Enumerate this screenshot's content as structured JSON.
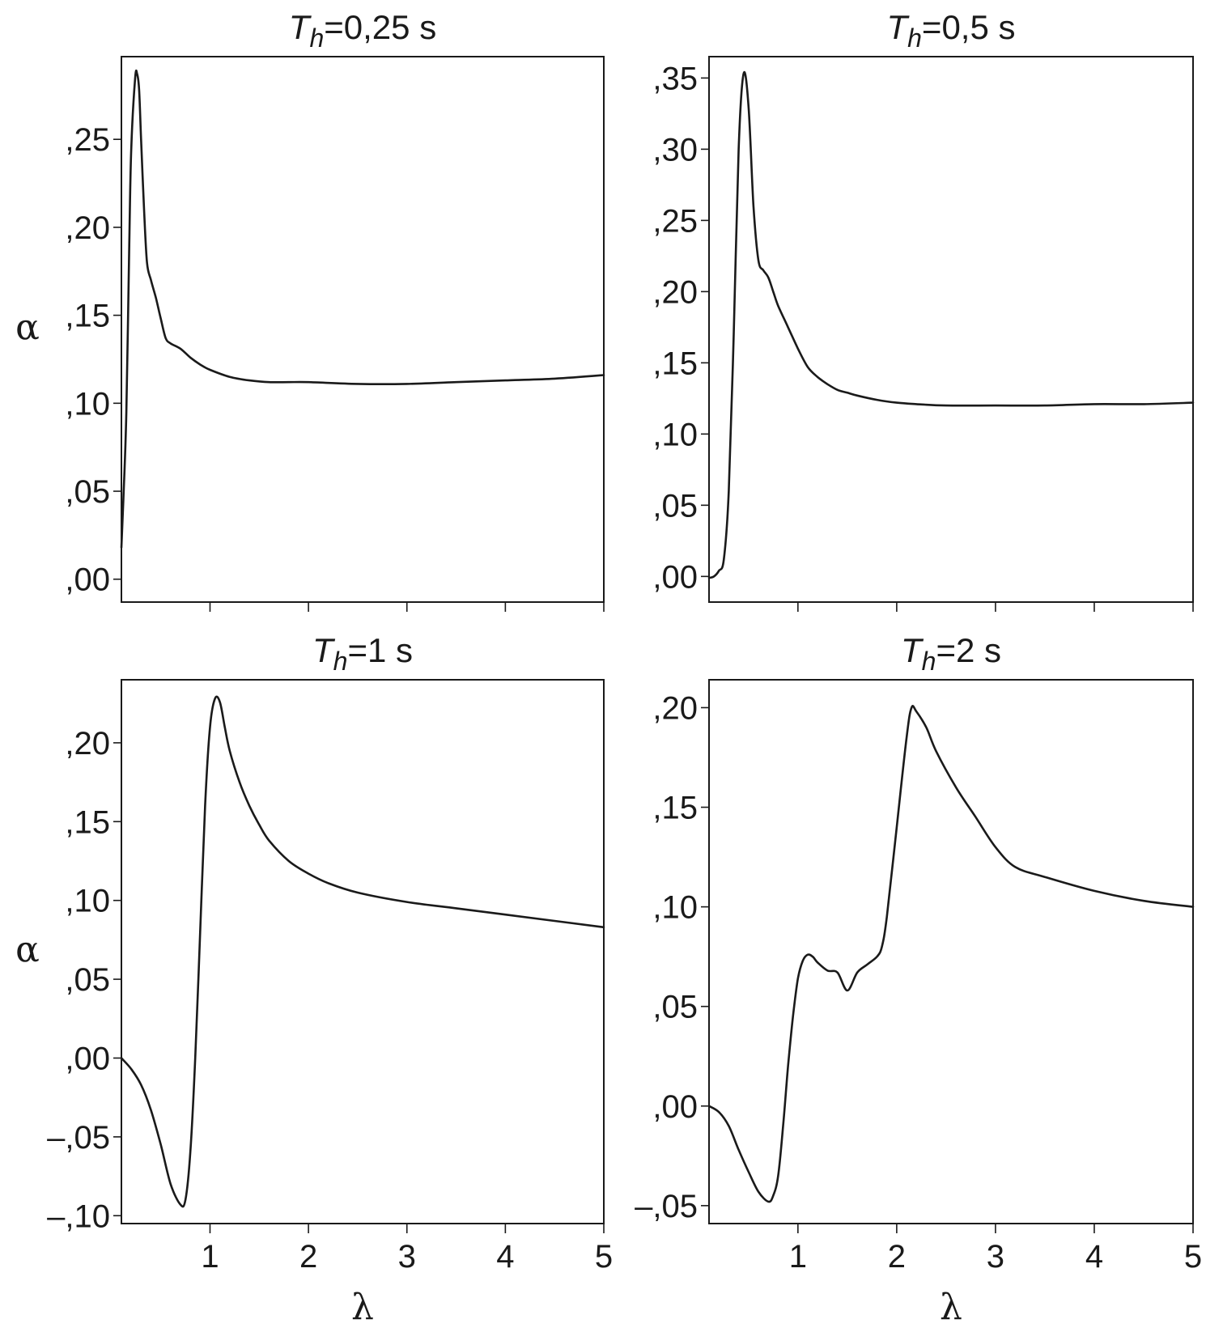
{
  "chart_data": [
    {
      "type": "line",
      "title_T": "T",
      "title_sub": "h",
      "title_rest": "=0,25 s",
      "ylabel": "α",
      "xlabel": "",
      "xlim": [
        0.1,
        5.0
      ],
      "ylim": [
        -0.013,
        0.297
      ],
      "xticks": [
        1,
        2,
        3,
        4,
        5
      ],
      "xtick_labels": [],
      "yticks": [
        0.0,
        0.05,
        0.1,
        0.15,
        0.2,
        0.25
      ],
      "ytick_labels": [
        ",00",
        ",05",
        ",10",
        ",15",
        ",20",
        ",25"
      ],
      "x": [
        0.1,
        0.12,
        0.15,
        0.18,
        0.2,
        0.24,
        0.26,
        0.28,
        0.3,
        0.33,
        0.36,
        0.4,
        0.45,
        0.5,
        0.55,
        0.6,
        0.7,
        0.8,
        0.9,
        1.0,
        1.2,
        1.4,
        1.6,
        1.8,
        2.0,
        2.5,
        3.0,
        3.5,
        4.0,
        4.5,
        5.0
      ],
      "y": [
        0.018,
        0.045,
        0.095,
        0.19,
        0.245,
        0.285,
        0.287,
        0.278,
        0.25,
        0.21,
        0.18,
        0.17,
        0.16,
        0.148,
        0.137,
        0.134,
        0.131,
        0.126,
        0.122,
        0.119,
        0.115,
        0.113,
        0.112,
        0.112,
        0.112,
        0.111,
        0.111,
        0.112,
        0.113,
        0.114,
        0.116
      ]
    },
    {
      "type": "line",
      "title_T": "T",
      "title_sub": "h",
      "title_rest": "=0,5 s",
      "ylabel": "",
      "xlabel": "",
      "xlim": [
        0.1,
        5.0
      ],
      "ylim": [
        -0.018,
        0.365
      ],
      "xticks": [
        1,
        2,
        3,
        4,
        5
      ],
      "xtick_labels": [],
      "yticks": [
        0.0,
        0.05,
        0.1,
        0.15,
        0.2,
        0.25,
        0.3,
        0.35
      ],
      "ytick_labels": [
        ",00",
        ",05",
        ",10",
        ",15",
        ",20",
        ",25",
        ",30",
        ",35"
      ],
      "x": [
        0.1,
        0.15,
        0.2,
        0.25,
        0.3,
        0.35,
        0.4,
        0.45,
        0.5,
        0.55,
        0.6,
        0.65,
        0.7,
        0.75,
        0.8,
        0.9,
        1.0,
        1.1,
        1.2,
        1.3,
        1.4,
        1.5,
        1.6,
        1.8,
        2.0,
        2.2,
        2.5,
        3.0,
        3.5,
        4.0,
        4.5,
        5.0
      ],
      "y": [
        -0.001,
        0.0,
        0.004,
        0.012,
        0.06,
        0.17,
        0.3,
        0.353,
        0.33,
        0.26,
        0.222,
        0.215,
        0.21,
        0.2,
        0.19,
        0.175,
        0.16,
        0.147,
        0.14,
        0.135,
        0.131,
        0.129,
        0.127,
        0.124,
        0.122,
        0.121,
        0.12,
        0.12,
        0.12,
        0.121,
        0.121,
        0.122
      ]
    },
    {
      "type": "line",
      "title_T": "T",
      "title_sub": "h",
      "title_rest": "=1 s",
      "ylabel": "α",
      "xlabel": "λ",
      "xlim": [
        0.1,
        5.0
      ],
      "ylim": [
        -0.105,
        0.24
      ],
      "xticks": [
        1,
        2,
        3,
        4,
        5
      ],
      "xtick_labels": [
        "1",
        "2",
        "3",
        "4",
        "5"
      ],
      "yticks": [
        -0.1,
        -0.05,
        0.0,
        0.05,
        0.1,
        0.15,
        0.2
      ],
      "ytick_labels": [
        "–,10",
        "–,05",
        ",00",
        ",05",
        ",10",
        ",15",
        ",20"
      ],
      "x": [
        0.1,
        0.2,
        0.3,
        0.4,
        0.5,
        0.6,
        0.7,
        0.75,
        0.8,
        0.85,
        0.9,
        0.95,
        1.0,
        1.05,
        1.1,
        1.15,
        1.2,
        1.3,
        1.4,
        1.5,
        1.6,
        1.8,
        2.0,
        2.2,
        2.5,
        3.0,
        3.5,
        4.0,
        4.5,
        5.0
      ],
      "y": [
        0.0,
        -0.007,
        -0.017,
        -0.033,
        -0.055,
        -0.08,
        -0.093,
        -0.09,
        -0.06,
        0.0,
        0.08,
        0.16,
        0.21,
        0.228,
        0.226,
        0.21,
        0.195,
        0.175,
        0.16,
        0.148,
        0.138,
        0.125,
        0.117,
        0.111,
        0.105,
        0.099,
        0.095,
        0.091,
        0.087,
        0.083
      ]
    },
    {
      "type": "line",
      "title_T": "T",
      "title_sub": "h",
      "title_rest": "=2 s",
      "ylabel": "",
      "xlabel": "λ",
      "xlim": [
        0.1,
        5.0
      ],
      "ylim": [
        -0.059,
        0.214
      ],
      "xticks": [
        1,
        2,
        3,
        4,
        5
      ],
      "xtick_labels": [
        "1",
        "2",
        "3",
        "4",
        "5"
      ],
      "yticks": [
        -0.05,
        0.0,
        0.05,
        0.1,
        0.15,
        0.2
      ],
      "ytick_labels": [
        "–,05",
        ",00",
        ",05",
        ",10",
        ",15",
        ",20"
      ],
      "x": [
        0.1,
        0.2,
        0.3,
        0.4,
        0.5,
        0.6,
        0.7,
        0.75,
        0.8,
        0.85,
        0.9,
        0.95,
        1.0,
        1.05,
        1.1,
        1.15,
        1.2,
        1.3,
        1.4,
        1.5,
        1.6,
        1.7,
        1.8,
        1.85,
        1.9,
        2.0,
        2.1,
        2.15,
        2.2,
        2.3,
        2.4,
        2.6,
        2.8,
        3.0,
        3.2,
        3.5,
        4.0,
        4.5,
        5.0
      ],
      "y": [
        0.0,
        -0.003,
        -0.01,
        -0.022,
        -0.033,
        -0.043,
        -0.048,
        -0.045,
        -0.035,
        -0.01,
        0.02,
        0.045,
        0.064,
        0.073,
        0.076,
        0.075,
        0.072,
        0.068,
        0.067,
        0.058,
        0.067,
        0.071,
        0.075,
        0.08,
        0.095,
        0.14,
        0.185,
        0.2,
        0.198,
        0.19,
        0.178,
        0.16,
        0.145,
        0.13,
        0.12,
        0.115,
        0.108,
        0.103,
        0.1
      ]
    }
  ]
}
